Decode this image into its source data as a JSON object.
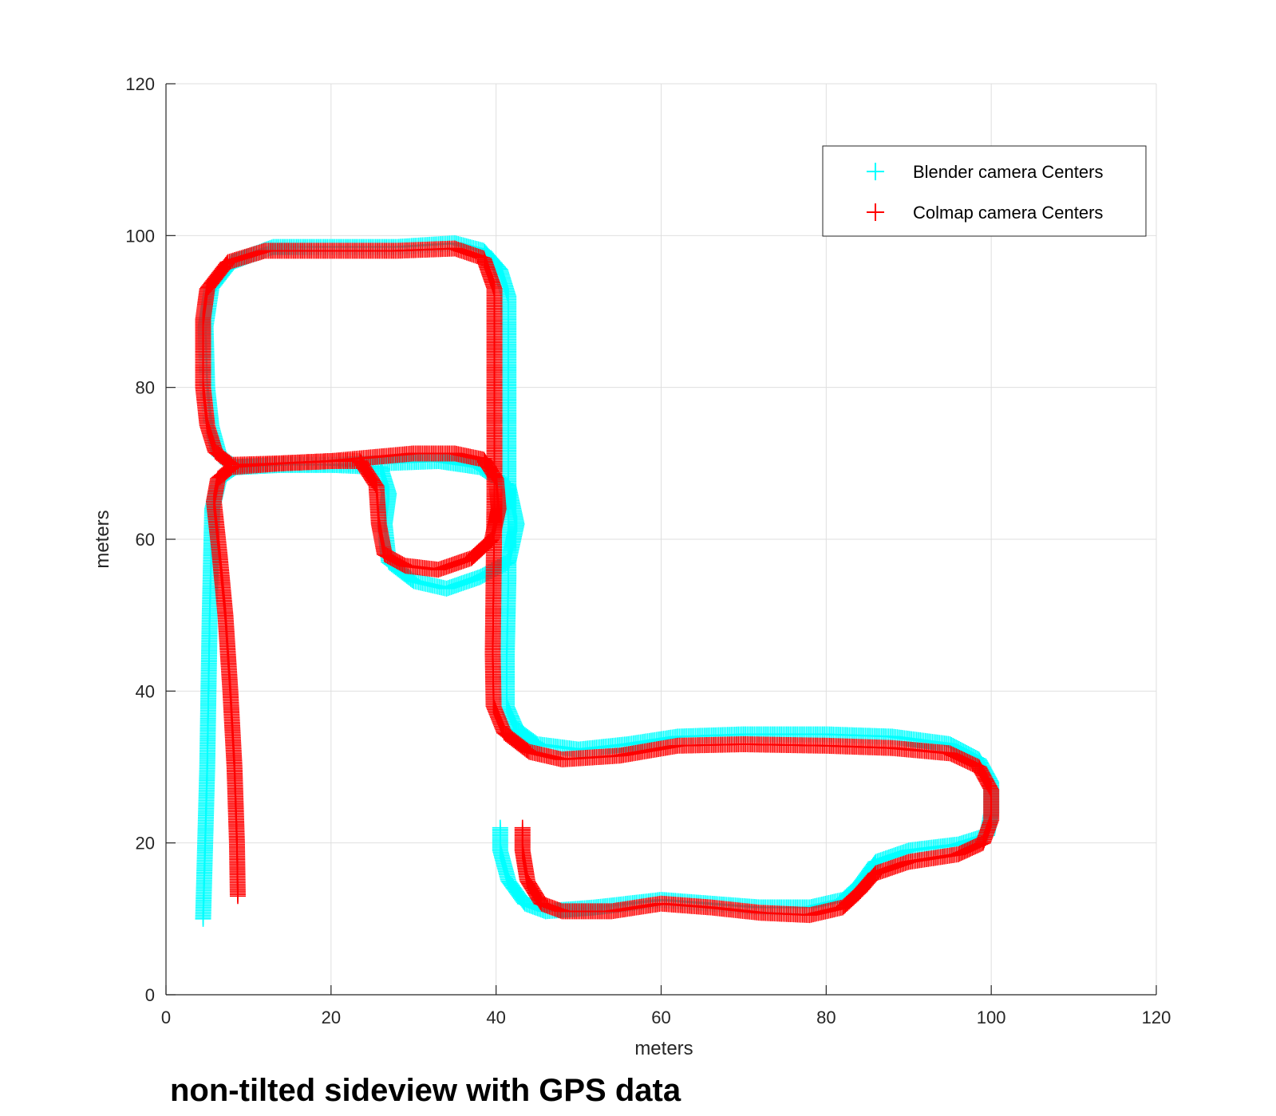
{
  "caption": "non-tilted sideview with GPS data",
  "chart_data": {
    "type": "scatter",
    "title": "",
    "xlabel": "meters",
    "ylabel": "meters",
    "xlim": [
      0,
      120
    ],
    "ylim": [
      0,
      120
    ],
    "xticks": [
      "0",
      "20",
      "40",
      "60",
      "80",
      "100",
      "120"
    ],
    "yticks": [
      "0",
      "20",
      "40",
      "60",
      "80",
      "100",
      "120"
    ],
    "grid": true,
    "legend_position": "top-right",
    "marker": "+",
    "series": [
      {
        "name": "Blender camera Centers",
        "color": "#00FFFF",
        "waypoints": [
          [
            4.5,
            10
          ],
          [
            5.0,
            30
          ],
          [
            5.3,
            50
          ],
          [
            5.6,
            64
          ],
          [
            6.5,
            68
          ],
          [
            8.5,
            69.5
          ],
          [
            14,
            69.8
          ],
          [
            20,
            69.8
          ],
          [
            26,
            70
          ],
          [
            33,
            70.3
          ],
          [
            38,
            69.5
          ],
          [
            41.5,
            67
          ],
          [
            42.5,
            62
          ],
          [
            41.5,
            57
          ],
          [
            38,
            55
          ],
          [
            34,
            53.5
          ],
          [
            30,
            54.5
          ],
          [
            27,
            57
          ],
          [
            26.5,
            62
          ],
          [
            27,
            66
          ],
          [
            26,
            69.5
          ],
          [
            20,
            69.8
          ],
          [
            14,
            69.8
          ],
          [
            8.5,
            69.5
          ],
          [
            6.5,
            71
          ],
          [
            5.5,
            75
          ],
          [
            5,
            80
          ],
          [
            4.8,
            88
          ],
          [
            5.5,
            93
          ],
          [
            8,
            96.5
          ],
          [
            13,
            98.5
          ],
          [
            20,
            98.5
          ],
          [
            28,
            98.5
          ],
          [
            35,
            99
          ],
          [
            38.5,
            98
          ],
          [
            40.5,
            95.5
          ],
          [
            41.5,
            92
          ],
          [
            41.5,
            85
          ],
          [
            41.5,
            75
          ],
          [
            41.5,
            65
          ],
          [
            41.5,
            55
          ],
          [
            41.3,
            45
          ],
          [
            41.3,
            38
          ],
          [
            42.5,
            35
          ],
          [
            45,
            33
          ],
          [
            50,
            32.3
          ],
          [
            56,
            33
          ],
          [
            62,
            34
          ],
          [
            70,
            34.3
          ],
          [
            80,
            34.3
          ],
          [
            88,
            34
          ],
          [
            95,
            33
          ],
          [
            98.5,
            31
          ],
          [
            100,
            28
          ],
          [
            100,
            24
          ],
          [
            99.5,
            21
          ],
          [
            96,
            19.8
          ],
          [
            90,
            19
          ],
          [
            86,
            17.5
          ],
          [
            84,
            14.5
          ],
          [
            82,
            12.5
          ],
          [
            78,
            11.5
          ],
          [
            72,
            11.5
          ],
          [
            66,
            12
          ],
          [
            60,
            12.5
          ],
          [
            52,
            11.5
          ],
          [
            46,
            11
          ],
          [
            43.5,
            12
          ],
          [
            41.5,
            15
          ],
          [
            40.5,
            19
          ],
          [
            40.5,
            22
          ]
        ]
      },
      {
        "name": "Colmap camera Centers",
        "color": "#FF0000",
        "waypoints": [
          [
            8.7,
            13
          ],
          [
            8.6,
            20
          ],
          [
            8.3,
            30
          ],
          [
            7.8,
            40
          ],
          [
            7.2,
            50
          ],
          [
            6.5,
            58
          ],
          [
            5.8,
            65
          ],
          [
            6.3,
            68
          ],
          [
            8,
            69.5
          ],
          [
            14,
            70
          ],
          [
            20,
            70.3
          ],
          [
            23.5,
            70.3
          ],
          [
            25.5,
            67
          ],
          [
            25.8,
            62
          ],
          [
            26.5,
            58
          ],
          [
            29,
            56.5
          ],
          [
            33,
            56
          ],
          [
            37,
            57.5
          ],
          [
            39.5,
            60
          ],
          [
            40.3,
            64
          ],
          [
            40,
            68
          ],
          [
            38.5,
            70.5
          ],
          [
            35,
            71.3
          ],
          [
            30,
            71.3
          ],
          [
            25,
            70.8
          ],
          [
            20,
            70.3
          ],
          [
            14,
            70
          ],
          [
            8,
            69.8
          ],
          [
            6,
            71.5
          ],
          [
            5,
            75
          ],
          [
            4.5,
            80
          ],
          [
            4.5,
            85
          ],
          [
            4.5,
            89
          ],
          [
            5,
            93
          ],
          [
            7.5,
            96.5
          ],
          [
            12,
            98
          ],
          [
            20,
            98
          ],
          [
            28,
            98
          ],
          [
            35,
            98.3
          ],
          [
            38.5,
            97
          ],
          [
            39.8,
            93
          ],
          [
            39.8,
            85
          ],
          [
            39.8,
            75
          ],
          [
            39.8,
            65
          ],
          [
            39.7,
            55
          ],
          [
            39.6,
            45
          ],
          [
            39.7,
            38
          ],
          [
            41,
            34.5
          ],
          [
            44,
            32
          ],
          [
            48,
            31
          ],
          [
            55,
            31.5
          ],
          [
            62,
            32.8
          ],
          [
            70,
            33
          ],
          [
            80,
            32.8
          ],
          [
            88,
            32.5
          ],
          [
            95,
            31.8
          ],
          [
            98.5,
            30
          ],
          [
            100,
            27
          ],
          [
            100,
            23
          ],
          [
            99,
            20
          ],
          [
            96,
            18.5
          ],
          [
            90,
            17.5
          ],
          [
            86,
            16
          ],
          [
            84,
            13.5
          ],
          [
            82,
            11.5
          ],
          [
            78,
            10.5
          ],
          [
            72,
            10.8
          ],
          [
            66,
            11.5
          ],
          [
            60,
            12
          ],
          [
            54,
            11
          ],
          [
            48,
            11
          ],
          [
            45.5,
            12
          ],
          [
            43.8,
            15
          ],
          [
            43.2,
            19
          ],
          [
            43.2,
            22
          ]
        ]
      }
    ]
  }
}
